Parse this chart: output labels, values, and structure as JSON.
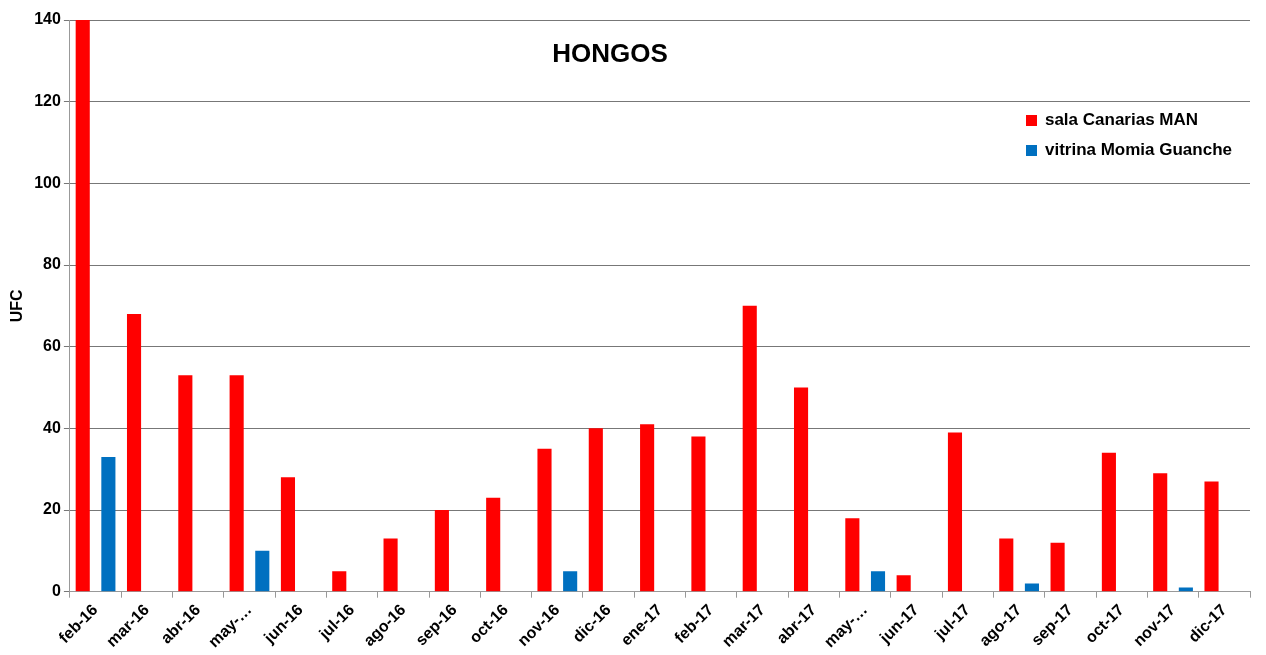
{
  "chart_data": {
    "type": "bar",
    "title": "HONGOS",
    "ylabel": "UFC",
    "categories": [
      "feb-16",
      "mar-16",
      "abr-16",
      "may-…",
      "jun-16",
      "jul-16",
      "ago-16",
      "sep-16",
      "oct-16",
      "nov-16",
      "dic-16",
      "ene-17",
      "feb-17",
      "mar-17",
      "abr-17",
      "may-…",
      "jun-17",
      "jul-17",
      "ago-17",
      "sep-17",
      "oct-17",
      "nov-17",
      "dic-17"
    ],
    "series": [
      {
        "name": "sala Canarias MAN",
        "color": "#ff0000",
        "values": [
          140,
          68,
          53,
          53,
          28,
          5,
          13,
          20,
          23,
          35,
          40,
          41,
          38,
          70,
          50,
          18,
          4,
          39,
          13,
          12,
          34,
          29,
          27
        ]
      },
      {
        "name": "vitrina Momia Guanche",
        "color": "#0070c0",
        "values": [
          33,
          null,
          null,
          10,
          null,
          null,
          null,
          null,
          null,
          5,
          null,
          null,
          null,
          null,
          null,
          5,
          null,
          null,
          2,
          null,
          null,
          1,
          null
        ]
      }
    ],
    "ylim": [
      0,
      140
    ],
    "yticks": [
      0,
      20,
      40,
      60,
      80,
      100,
      120,
      140
    ],
    "grid": "y",
    "legend": "top right"
  }
}
